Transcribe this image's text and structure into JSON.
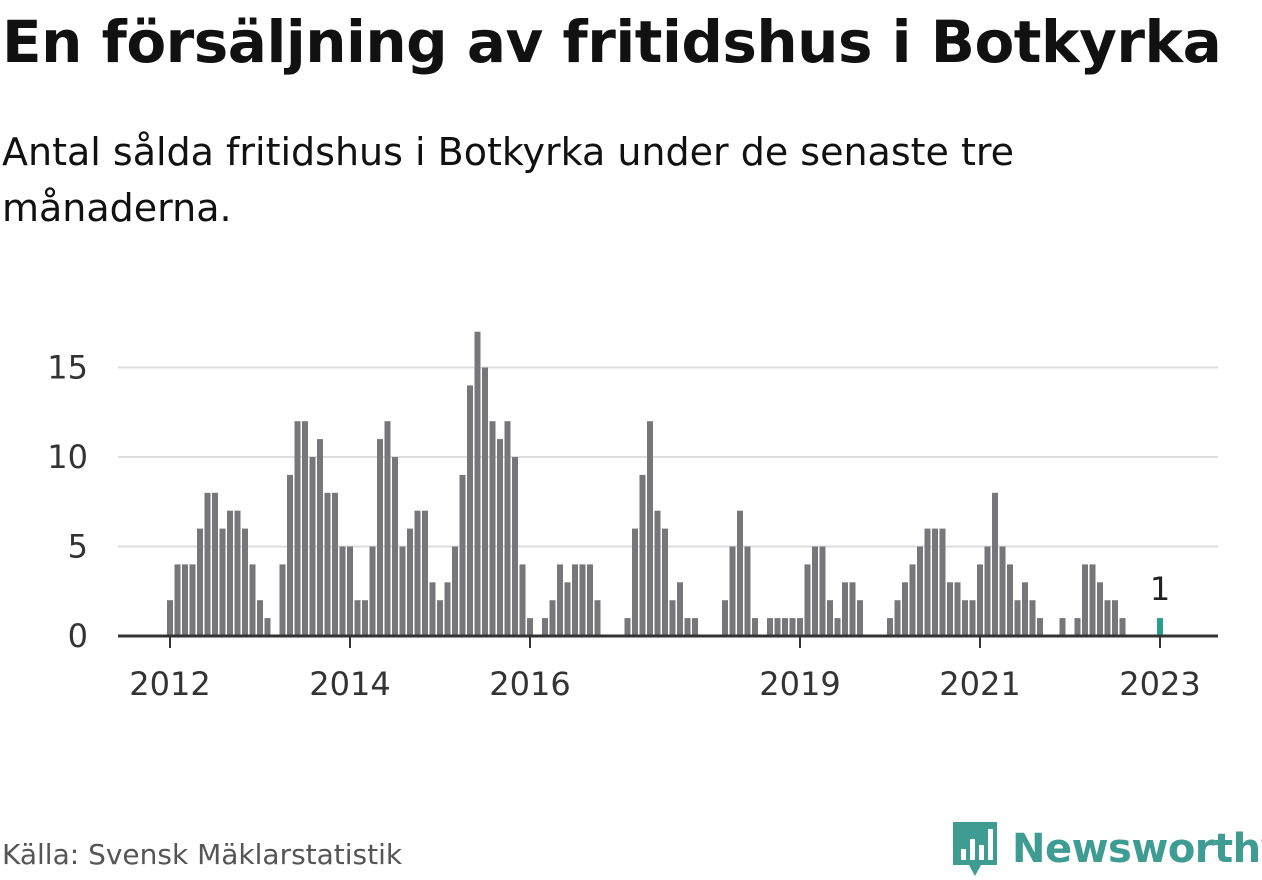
{
  "title": "En försäljning av fritidshus i Botkyrka",
  "subtitle": "Antal sålda fritidshus i Botkyrka under de senaste tre månaderna.",
  "source": "Källa: Svensk Mäklarstatistik",
  "brand": "Newsworthy",
  "colors": {
    "bar": "#77767b",
    "highlight": "#2a9d8f",
    "grid": "#dddddd",
    "axis": "#333333",
    "brand": "#3e9c92"
  },
  "chart_data": {
    "type": "bar",
    "title": "",
    "xlabel": "",
    "ylabel": "",
    "ylim": [
      0,
      17
    ],
    "yticks": [
      0,
      5,
      10,
      15
    ],
    "grid": true,
    "xticks": [
      {
        "label": "2012",
        "x": "2012-01"
      },
      {
        "label": "2014",
        "x": "2014-01"
      },
      {
        "label": "2016",
        "x": "2016-01"
      },
      {
        "label": "2019",
        "x": "2019-01"
      },
      {
        "label": "2021",
        "x": "2021-01"
      },
      {
        "label": "2023",
        "x": "2023-01"
      }
    ],
    "annotation": {
      "x": "2023-01",
      "label": "1"
    },
    "x": [
      "2012-01",
      "2012-02",
      "2012-03",
      "2012-04",
      "2012-05",
      "2012-06",
      "2012-07",
      "2012-08",
      "2012-09",
      "2012-10",
      "2012-11",
      "2012-12",
      "2013-01",
      "2013-02",
      "2013-03",
      "2013-04",
      "2013-05",
      "2013-06",
      "2013-07",
      "2013-08",
      "2013-09",
      "2013-10",
      "2013-11",
      "2013-12",
      "2014-01",
      "2014-02",
      "2014-03",
      "2014-04",
      "2014-05",
      "2014-06",
      "2014-07",
      "2014-08",
      "2014-09",
      "2014-10",
      "2014-11",
      "2014-12",
      "2015-01",
      "2015-02",
      "2015-03",
      "2015-04",
      "2015-05",
      "2015-06",
      "2015-07",
      "2015-08",
      "2015-09",
      "2015-10",
      "2015-11",
      "2015-12",
      "2016-01",
      "2016-02",
      "2016-03",
      "2016-04",
      "2016-05",
      "2016-06",
      "2016-07",
      "2016-08",
      "2016-09",
      "2016-10",
      "2016-11",
      "2016-12",
      "2017-01",
      "2017-02",
      "2017-03",
      "2017-04",
      "2017-05",
      "2017-06",
      "2017-07",
      "2017-08",
      "2017-09",
      "2017-10",
      "2017-11",
      "2017-12",
      "2018-01",
      "2018-02",
      "2018-03",
      "2018-04",
      "2018-05",
      "2018-06",
      "2018-07",
      "2018-08",
      "2018-09",
      "2018-10",
      "2018-11",
      "2018-12",
      "2019-01",
      "2019-02",
      "2019-03",
      "2019-04",
      "2019-05",
      "2019-06",
      "2019-07",
      "2019-08",
      "2019-09",
      "2019-10",
      "2019-11",
      "2019-12",
      "2020-01",
      "2020-02",
      "2020-03",
      "2020-04",
      "2020-05",
      "2020-06",
      "2020-07",
      "2020-08",
      "2020-09",
      "2020-10",
      "2020-11",
      "2020-12",
      "2021-01",
      "2021-02",
      "2021-03",
      "2021-04",
      "2021-05",
      "2021-06",
      "2021-07",
      "2021-08",
      "2021-09",
      "2021-10",
      "2021-11",
      "2021-12",
      "2022-01",
      "2022-02",
      "2022-03",
      "2022-04",
      "2022-05",
      "2022-06",
      "2022-07",
      "2022-08",
      "2022-09",
      "2022-10",
      "2022-11",
      "2022-12",
      "2023-01"
    ],
    "values": [
      2,
      4,
      4,
      4,
      6,
      8,
      8,
      6,
      7,
      7,
      6,
      4,
      2,
      1,
      0,
      4,
      9,
      12,
      12,
      10,
      11,
      8,
      8,
      5,
      5,
      2,
      2,
      5,
      11,
      12,
      10,
      5,
      6,
      7,
      7,
      3,
      2,
      3,
      5,
      9,
      14,
      17,
      15,
      12,
      11,
      12,
      10,
      4,
      1,
      0,
      1,
      2,
      4,
      3,
      4,
      4,
      4,
      2,
      0,
      0,
      0,
      1,
      6,
      9,
      12,
      7,
      6,
      2,
      3,
      1,
      1,
      0,
      0,
      0,
      2,
      5,
      7,
      5,
      1,
      0,
      1,
      1,
      1,
      1,
      1,
      4,
      5,
      5,
      2,
      1,
      3,
      3,
      2,
      0,
      0,
      0,
      1,
      2,
      3,
      4,
      5,
      6,
      6,
      6,
      3,
      3,
      2,
      2,
      4,
      5,
      8,
      5,
      4,
      2,
      3,
      2,
      1,
      0,
      0,
      1,
      0,
      1,
      4,
      4,
      3,
      2,
      2,
      1,
      0,
      0,
      0,
      0,
      1
    ]
  }
}
